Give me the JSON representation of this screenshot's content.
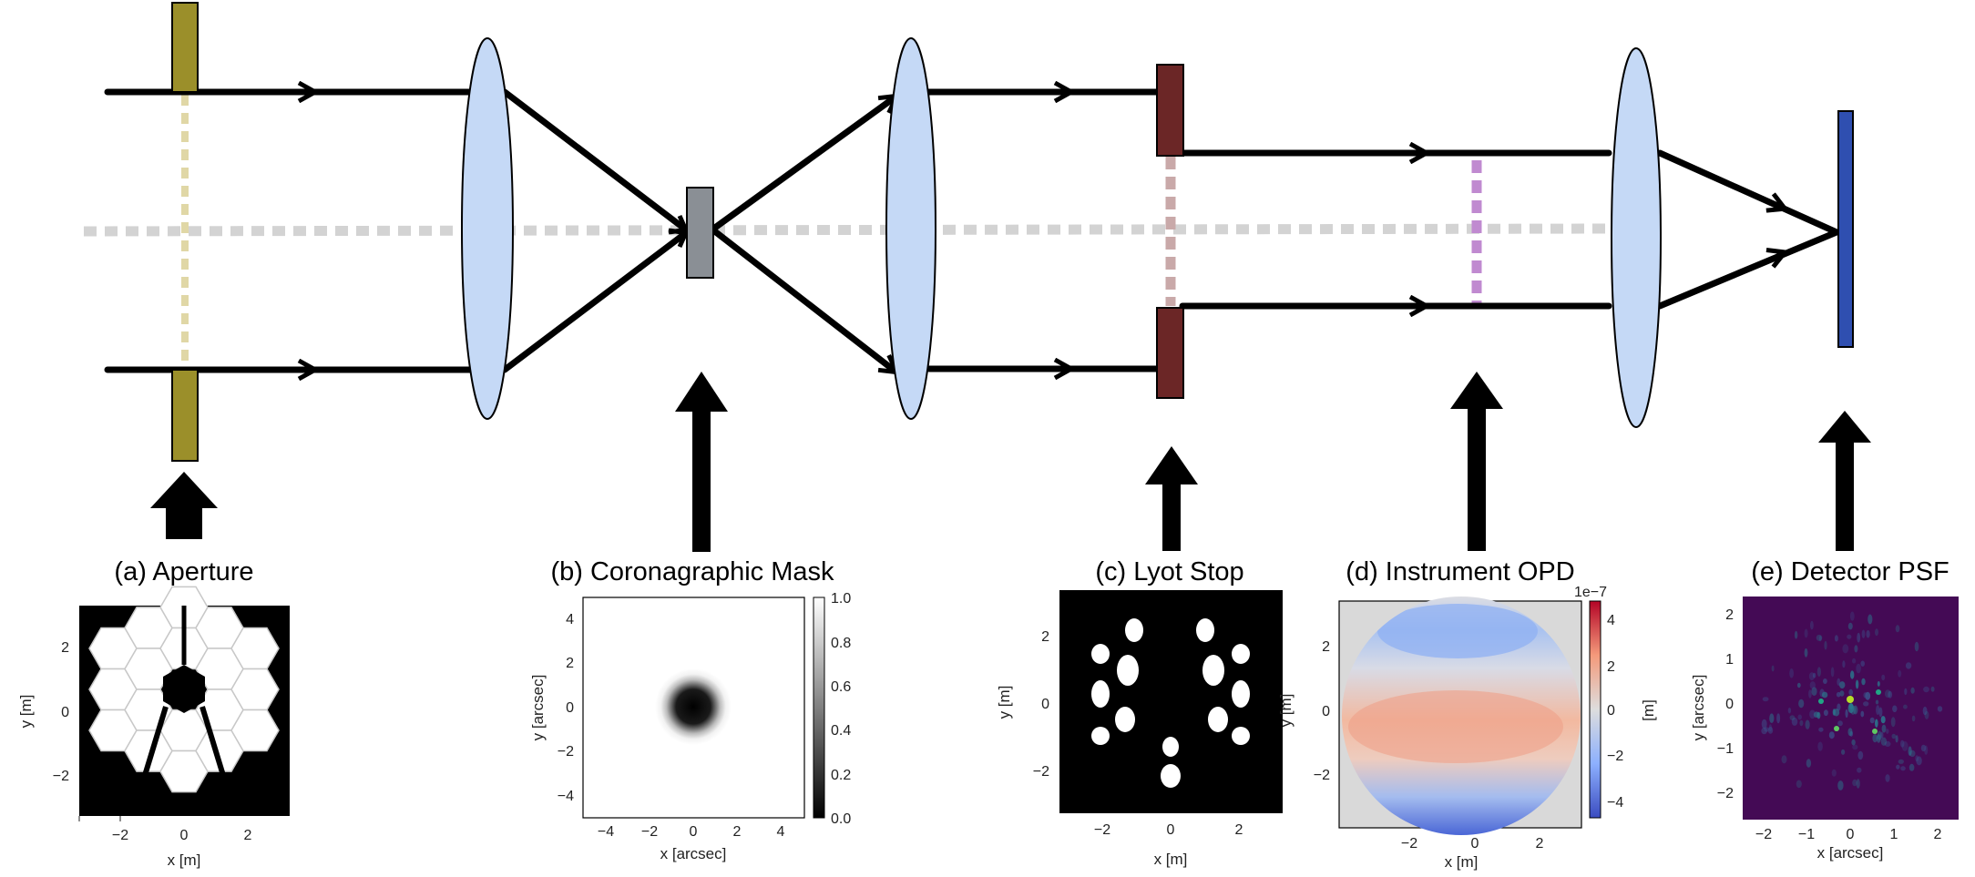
{
  "panels": {
    "a": {
      "title": "(a) Aperture",
      "xlabel": "x [m]",
      "ylabel": "y [m]",
      "xticks": [
        "−2",
        "0",
        "2"
      ],
      "yticks": [
        "2",
        "0",
        "−2"
      ]
    },
    "b": {
      "title": "(b) Coronagraphic Mask",
      "xlabel": "x [arcsec]",
      "ylabel": "y [arcsec]",
      "xticks": [
        "−4",
        "−2",
        "0",
        "2",
        "4"
      ],
      "yticks": [
        "4",
        "2",
        "0",
        "−2",
        "−4"
      ],
      "colorbar_ticks": [
        "1.0",
        "0.8",
        "0.6",
        "0.4",
        "0.2",
        "0.0"
      ]
    },
    "c": {
      "title": "(c) Lyot Stop",
      "xlabel": "x [m]",
      "ylabel": "y [m]",
      "xticks": [
        "−2",
        "0",
        "2"
      ],
      "yticks": [
        "2",
        "0",
        "−2"
      ]
    },
    "d": {
      "title": "(d) Instrument OPD",
      "xlabel": "x [m]",
      "ylabel": "y [m]",
      "xticks": [
        "−2",
        "0",
        "2"
      ],
      "yticks": [
        "2",
        "0",
        "−2"
      ],
      "colorbar_ticks": [
        "4",
        "2",
        "0",
        "−2",
        "−4"
      ],
      "colorbar_label": "[m]",
      "colorbar_scale": "1e−7"
    },
    "e": {
      "title": "(e) Detector PSF",
      "xlabel": "x [arcsec]",
      "ylabel": "y [arcsec]",
      "xticks": [
        "−2",
        "−1",
        "0",
        "1",
        "2"
      ],
      "yticks": [
        "2",
        "1",
        "0",
        "−1",
        "−2"
      ]
    }
  },
  "colors": {
    "aperture": "#9b8f2a",
    "lens": "#c5d9f6",
    "mask": "#8a8f95",
    "lyot_stop": "#6b2626",
    "detector": "#2f4fb0",
    "optical_axis": "#d3d3d3",
    "aperture_plane": "#e0d7a6",
    "lyot_plane": "#c9a9a9",
    "opd_plane": "#c08ad0"
  }
}
